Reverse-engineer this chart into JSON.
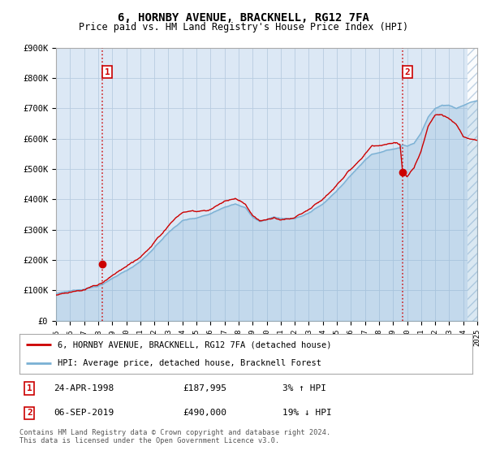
{
  "title": "6, HORNBY AVENUE, BRACKNELL, RG12 7FA",
  "subtitle": "Price paid vs. HM Land Registry's House Price Index (HPI)",
  "ylim": [
    0,
    900000
  ],
  "yticks": [
    0,
    100000,
    200000,
    300000,
    400000,
    500000,
    600000,
    700000,
    800000,
    900000
  ],
  "ytick_labels": [
    "£0",
    "£100K",
    "£200K",
    "£300K",
    "£400K",
    "£500K",
    "£600K",
    "£700K",
    "£800K",
    "£900K"
  ],
  "hpi_color": "#7ab0d4",
  "price_color": "#cc0000",
  "plot_bg_color": "#dce8f5",
  "hatch_color": "#c8d8e8",
  "point1_price": 187995,
  "point2_price": 490000,
  "legend_entry1": "6, HORNBY AVENUE, BRACKNELL, RG12 7FA (detached house)",
  "legend_entry2": "HPI: Average price, detached house, Bracknell Forest",
  "table_row1": [
    "1",
    "24-APR-1998",
    "£187,995",
    "3% ↑ HPI"
  ],
  "table_row2": [
    "2",
    "06-SEP-2019",
    "£490,000",
    "19% ↓ HPI"
  ],
  "footnote": "Contains HM Land Registry data © Crown copyright and database right 2024.\nThis data is licensed under the Open Government Licence v3.0.",
  "background_color": "#ffffff",
  "grid_color": "#b8cce0",
  "vline_color": "#cc0000",
  "point1_year": 1998.31,
  "point2_year": 2019.68,
  "xmin": 1995,
  "xmax": 2025
}
